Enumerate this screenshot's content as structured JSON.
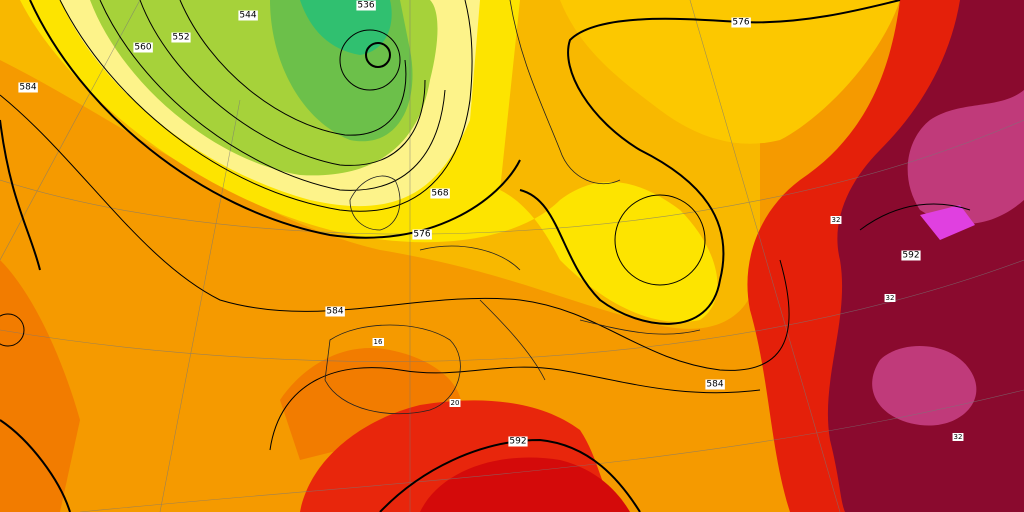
{
  "contour_labels": [
    544,
    536,
    552,
    560,
    584,
    568,
    576,
    576,
    584,
    584,
    592,
    592
  ],
  "temperature_labels": [
    32,
    32,
    20,
    16,
    32
  ]
}
